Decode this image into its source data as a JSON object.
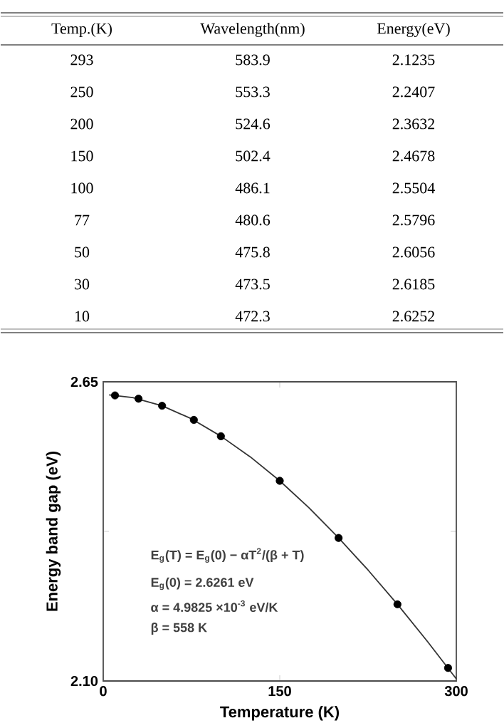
{
  "chart_data": [
    {
      "type": "other",
      "annotations": [
        "Temp.(K)",
        "Wavelength(nm)",
        "Energy(eV)",
        "293",
        "583.9",
        "2.1235",
        "250",
        "553.3",
        "2.2407",
        "200",
        "524.6",
        "2.3632",
        "150",
        "502.4",
        "2.4678",
        "100",
        "486.1",
        "2.5504",
        "77",
        "480.6",
        "2.5796",
        "50",
        "475.8",
        "2.6056",
        "30",
        "473.5",
        "2.6185",
        "10",
        "472.3",
        "2.6252"
      ]
    },
    {
      "type": "scatter",
      "xlabel": "Temperature (K)",
      "ylabel": "Energy  band  gap  (eV)",
      "xlim": [
        0,
        300
      ],
      "ylim": [
        2.1,
        2.65
      ],
      "xticks": [
        0,
        150,
        300
      ],
      "yticks": [
        {
          "value": 2.1,
          "label": "2.10"
        },
        {
          "value": 2.375,
          "label": null
        },
        2.65
      ],
      "series": [
        {
          "type": "scatter",
          "marker": "circle",
          "color": "#000000",
          "x": [
            10,
            30,
            50,
            77,
            100,
            150,
            200,
            250,
            293
          ],
          "values": [
            2.625,
            2.619,
            2.606,
            2.58,
            2.55,
            2.468,
            2.363,
            2.241,
            2.124
          ]
        },
        {
          "type": "line",
          "marker": "none",
          "color": "#333333",
          "x": [
            5,
            25,
            50,
            75,
            100,
            125,
            150,
            175,
            200,
            225,
            250,
            275,
            300
          ],
          "values": [
            2.626,
            2.621,
            2.606,
            2.582,
            2.55,
            2.512,
            2.468,
            2.418,
            2.363,
            2.304,
            2.241,
            2.174,
            2.104
          ]
        }
      ],
      "annotations": [
        "E$_{g}$(T) = E$_{g}$(0) − αT$^{2}$/(β + T)",
        "E$_{g}$(0) = 2.6261   eV",
        "α = 4.9825 ×10$^{-3}$   eV/K",
        "β = 558   K"
      ]
    }
  ]
}
